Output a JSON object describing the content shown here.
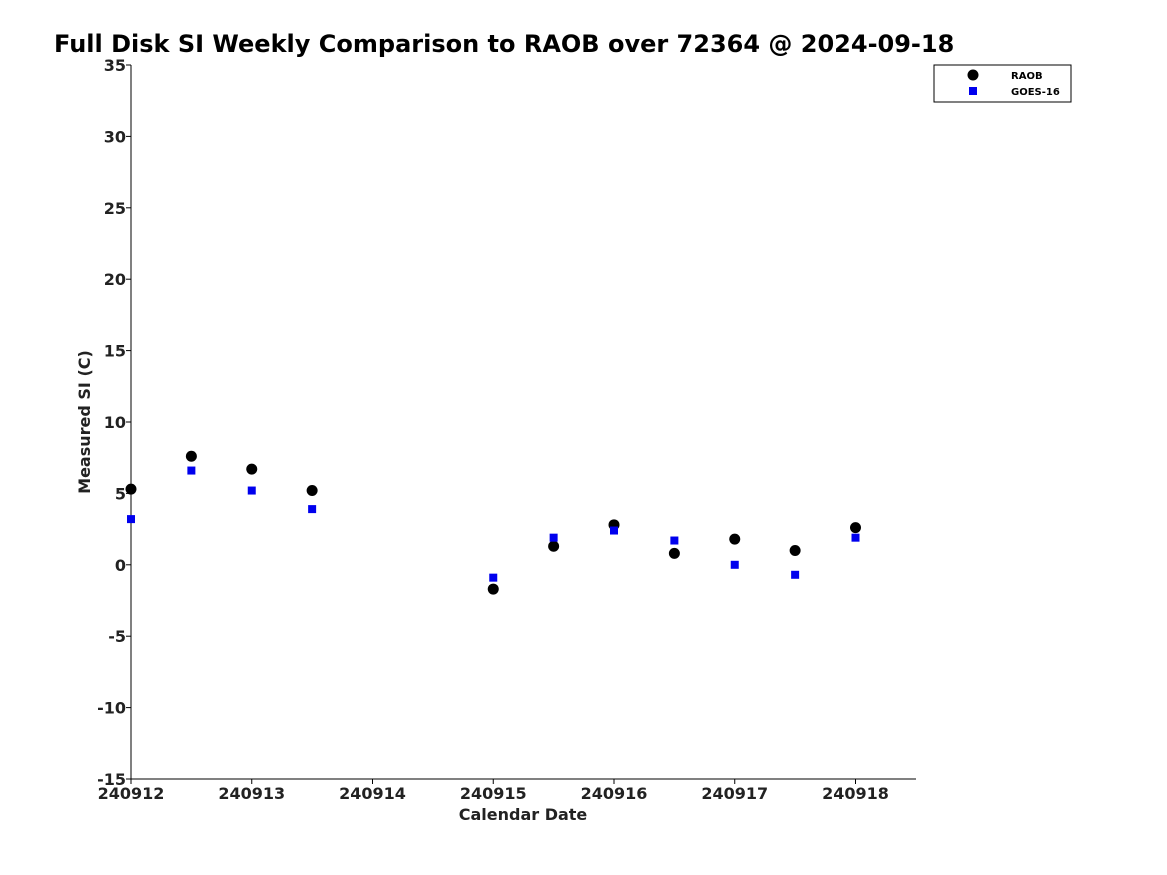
{
  "chart_data": {
    "type": "scatter",
    "title": "Full Disk SI Weekly Comparison to RAOB over 72364 @ 2024-09-18",
    "xlabel": "Calendar Date",
    "ylabel": "Measured SI (C)",
    "xlim": [
      240912,
      240918.5
    ],
    "ylim": [
      -15,
      35
    ],
    "xticks": [
      240912,
      240913,
      240914,
      240915,
      240916,
      240917,
      240918
    ],
    "xtick_labels": [
      "240912",
      "240913",
      "240914",
      "240915",
      "240916",
      "240917",
      "240918"
    ],
    "yticks": [
      -15,
      -10,
      -5,
      0,
      5,
      10,
      15,
      20,
      25,
      30,
      35
    ],
    "ytick_labels": [
      "-15",
      "-10",
      "-5",
      "0",
      "5",
      "10",
      "15",
      "20",
      "25",
      "30",
      "35"
    ],
    "grid": false,
    "legend_position": "top-right",
    "series": [
      {
        "name": "RAOB",
        "marker": "circle",
        "color": "#000000",
        "x": [
          240912,
          240912.5,
          240913,
          240913.5,
          240915,
          240915.5,
          240916,
          240916.5,
          240917,
          240917.5,
          240918
        ],
        "y": [
          5.3,
          7.6,
          6.7,
          5.2,
          -1.7,
          1.3,
          2.8,
          0.8,
          1.8,
          1.0,
          2.6
        ]
      },
      {
        "name": "GOES-16",
        "marker": "square",
        "color": "#0000ee",
        "x": [
          240912,
          240912.5,
          240913,
          240913.5,
          240915,
          240915.5,
          240916,
          240916.5,
          240917,
          240917.5,
          240918
        ],
        "y": [
          3.2,
          6.6,
          5.2,
          3.9,
          -0.9,
          1.9,
          2.4,
          1.7,
          0.0,
          -0.7,
          1.9
        ]
      }
    ]
  }
}
